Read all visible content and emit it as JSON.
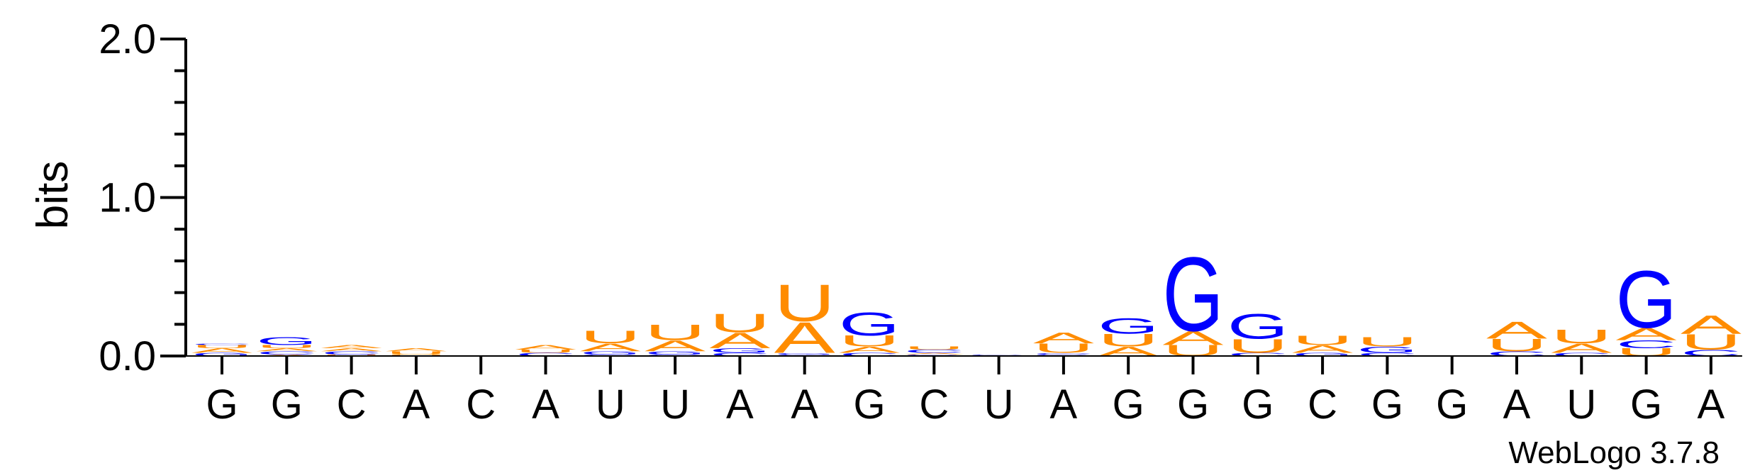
{
  "chart_data": {
    "type": "sequence-logo",
    "ylabel": "bits",
    "ylim": [
      0,
      2.0
    ],
    "y_ticks": [
      {
        "value": 0.0,
        "label": "0.0"
      },
      {
        "value": 1.0,
        "label": "1.0"
      },
      {
        "value": 2.0,
        "label": "2.0"
      }
    ],
    "x_tick_labels": [
      "G",
      "G",
      "C",
      "A",
      "C",
      "A",
      "U",
      "U",
      "A",
      "A",
      "G",
      "C",
      "U",
      "A",
      "G",
      "G",
      "G",
      "C",
      "G",
      "G",
      "A",
      "U",
      "G",
      "A"
    ],
    "colors": {
      "A": "#ff8c00",
      "U": "#ff8c00",
      "G": "#0000ff",
      "C": "#0000ff"
    },
    "positions": [
      [
        {
          "letter": "G",
          "bits": 0.02
        },
        {
          "letter": "A",
          "bits": 0.03
        },
        {
          "letter": "U",
          "bits": 0.02
        },
        {
          "letter": "C",
          "bits": 0.01
        }
      ],
      [
        {
          "letter": "A",
          "bits": 0.01
        },
        {
          "letter": "C",
          "bits": 0.02
        },
        {
          "letter": "A",
          "bits": 0.02
        },
        {
          "letter": "U",
          "bits": 0.02
        },
        {
          "letter": "G",
          "bits": 0.05
        }
      ],
      [
        {
          "letter": "U",
          "bits": 0.01
        },
        {
          "letter": "C",
          "bits": 0.02
        },
        {
          "letter": "A",
          "bits": 0.02
        },
        {
          "letter": "A",
          "bits": 0.02
        }
      ],
      [
        {
          "letter": "U",
          "bits": 0.01
        },
        {
          "letter": "U",
          "bits": 0.02
        },
        {
          "letter": "A",
          "bits": 0.02
        }
      ],
      [],
      [
        {
          "letter": "C",
          "bits": 0.02
        },
        {
          "letter": "U",
          "bits": 0.02
        },
        {
          "letter": "A",
          "bits": 0.03
        }
      ],
      [
        {
          "letter": "C",
          "bits": 0.01
        },
        {
          "letter": "G",
          "bits": 0.02
        },
        {
          "letter": "A",
          "bits": 0.05
        },
        {
          "letter": "U",
          "bits": 0.08
        }
      ],
      [
        {
          "letter": "C",
          "bits": 0.01
        },
        {
          "letter": "G",
          "bits": 0.02
        },
        {
          "letter": "A",
          "bits": 0.07
        },
        {
          "letter": "U",
          "bits": 0.1
        }
      ],
      [
        {
          "letter": "C",
          "bits": 0.02
        },
        {
          "letter": "G",
          "bits": 0.03
        },
        {
          "letter": "A",
          "bits": 0.1
        },
        {
          "letter": "U",
          "bits": 0.12
        }
      ],
      [
        {
          "letter": "C",
          "bits": 0.01
        },
        {
          "letter": "G",
          "bits": 0.01
        },
        {
          "letter": "A",
          "bits": 0.2
        },
        {
          "letter": "U",
          "bits": 0.24
        }
      ],
      [
        {
          "letter": "C",
          "bits": 0.02
        },
        {
          "letter": "A",
          "bits": 0.04
        },
        {
          "letter": "U",
          "bits": 0.07
        },
        {
          "letter": "G",
          "bits": 0.15
        }
      ],
      [
        {
          "letter": "G",
          "bits": 0.01
        },
        {
          "letter": "A",
          "bits": 0.01
        },
        {
          "letter": "C",
          "bits": 0.02
        },
        {
          "letter": "U",
          "bits": 0.02
        }
      ],
      [
        {
          "letter": "G",
          "bits": 0.01
        }
      ],
      [
        {
          "letter": "G",
          "bits": 0.01
        },
        {
          "letter": "C",
          "bits": 0.01
        },
        {
          "letter": "U",
          "bits": 0.06
        },
        {
          "letter": "A",
          "bits": 0.07
        }
      ],
      [
        {
          "letter": "A",
          "bits": 0.06
        },
        {
          "letter": "U",
          "bits": 0.08
        },
        {
          "letter": "G",
          "bits": 0.1
        }
      ],
      [
        {
          "letter": "U",
          "bits": 0.07
        },
        {
          "letter": "A",
          "bits": 0.09
        },
        {
          "letter": "G",
          "bits": 0.48
        }
      ],
      [
        {
          "letter": "C",
          "bits": 0.02
        },
        {
          "letter": "U",
          "bits": 0.09
        },
        {
          "letter": "G",
          "bits": 0.16
        }
      ],
      [
        {
          "letter": "G",
          "bits": 0.02
        },
        {
          "letter": "A",
          "bits": 0.05
        },
        {
          "letter": "U",
          "bits": 0.06
        }
      ],
      [
        {
          "letter": "C",
          "bits": 0.02
        },
        {
          "letter": "G",
          "bits": 0.04
        },
        {
          "letter": "U",
          "bits": 0.06
        }
      ],
      [],
      [
        {
          "letter": "C",
          "bits": 0.03
        },
        {
          "letter": "U",
          "bits": 0.08
        },
        {
          "letter": "A",
          "bits": 0.11
        }
      ],
      [
        {
          "letter": "C",
          "bits": 0.02
        },
        {
          "letter": "A",
          "bits": 0.06
        },
        {
          "letter": "U",
          "bits": 0.09
        }
      ],
      [
        {
          "letter": "U",
          "bits": 0.05
        },
        {
          "letter": "C",
          "bits": 0.05
        },
        {
          "letter": "A",
          "bits": 0.08
        },
        {
          "letter": "G",
          "bits": 0.37
        }
      ],
      [
        {
          "letter": "C",
          "bits": 0.04
        },
        {
          "letter": "U",
          "bits": 0.1
        },
        {
          "letter": "A",
          "bits": 0.12
        }
      ]
    ]
  },
  "footer": {
    "version_label": "WebLogo 3.7.8"
  }
}
